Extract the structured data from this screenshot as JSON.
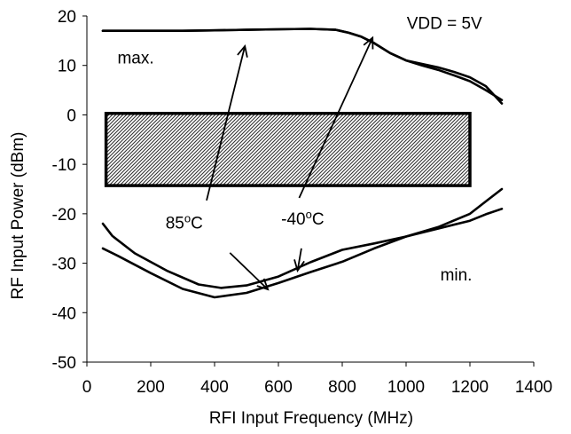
{
  "chart_data": {
    "type": "line",
    "xlabel": "RFI Input Frequency (MHz)",
    "ylabel": "RF Input Power (dBm)",
    "xlim": [
      0,
      1400
    ],
    "ylim": [
      -50,
      20
    ],
    "xticks": [
      0,
      200,
      400,
      600,
      800,
      1000,
      1200,
      1400
    ],
    "yticks": [
      -50,
      -40,
      -30,
      -20,
      -10,
      0,
      10,
      20
    ],
    "grid": false,
    "legend": "none",
    "series": [
      {
        "x": [
          50,
          100,
          200,
          300,
          400,
          500,
          600,
          700,
          780,
          820,
          860,
          900,
          950,
          1000,
          1050,
          1100,
          1150,
          1200,
          1250,
          1300
        ],
        "y": [
          17,
          17,
          17,
          17,
          17.1,
          17.2,
          17.3,
          17.4,
          17.2,
          16.6,
          15.8,
          14.5,
          12.5,
          11.0,
          10.3,
          9.6,
          8.7,
          7.6,
          5.8,
          2.3
        ]
      },
      {
        "x": [
          50,
          100,
          200,
          300,
          400,
          500,
          600,
          700,
          780,
          820,
          860,
          900,
          950,
          1000,
          1050,
          1100,
          1150,
          1200,
          1250,
          1300
        ],
        "y": [
          17,
          17,
          17,
          17,
          17.1,
          17.2,
          17.3,
          17.4,
          17.2,
          16.6,
          15.8,
          14.5,
          12.5,
          11.0,
          10.0,
          9.1,
          8.0,
          6.8,
          5.0,
          3.0
        ]
      },
      {
        "x": [
          50,
          80,
          150,
          250,
          350,
          420,
          500,
          600,
          700,
          800,
          900,
          1000,
          1100,
          1200,
          1250,
          1300
        ],
        "y": [
          -22,
          -24.5,
          -28,
          -31.5,
          -34.3,
          -35.0,
          -34.5,
          -32.7,
          -29.8,
          -27.3,
          -26.0,
          -24.6,
          -22.7,
          -20.0,
          -17.5,
          -15.0
        ]
      },
      {
        "x": [
          50,
          100,
          200,
          300,
          400,
          500,
          600,
          700,
          800,
          900,
          1000,
          1100,
          1200,
          1250,
          1300
        ],
        "y": [
          -27,
          -28.6,
          -32,
          -35.2,
          -36.9,
          -36.0,
          -34.0,
          -31.8,
          -29.7,
          -27.0,
          -24.6,
          -23.0,
          -21.4,
          -20.1,
          -19.0
        ]
      }
    ],
    "region": {
      "x0": 60,
      "x1": 1200,
      "y0": -14.3,
      "y1": 0.3
    },
    "annotations": {
      "vdd": {
        "text": "VDD = 5V",
        "x": 1120,
        "y": 17.4
      },
      "max": {
        "text": "max.",
        "x": 153,
        "y": 10.4
      },
      "min": {
        "text": "min.",
        "x": 1157,
        "y": -33.5
      },
      "t85": {
        "text": "85",
        "sup": "o",
        "unit": "C",
        "x": 305,
        "y": -23.0
      },
      "tm40": {
        "text": "-40",
        "sup": "o",
        "unit": "C",
        "x": 676,
        "y": -22.2
      }
    },
    "arrows": [
      {
        "from": [
          375,
          -17.3
        ],
        "to": [
          495,
          13.9
        ]
      },
      {
        "from": [
          665,
          -16.8
        ],
        "to": [
          895,
          15.6
        ]
      },
      {
        "from": [
          448,
          -27.9
        ],
        "to": [
          567,
          -35.3
        ]
      },
      {
        "from": [
          672,
          -27.0
        ],
        "to": [
          660,
          -31.5
        ]
      }
    ]
  }
}
